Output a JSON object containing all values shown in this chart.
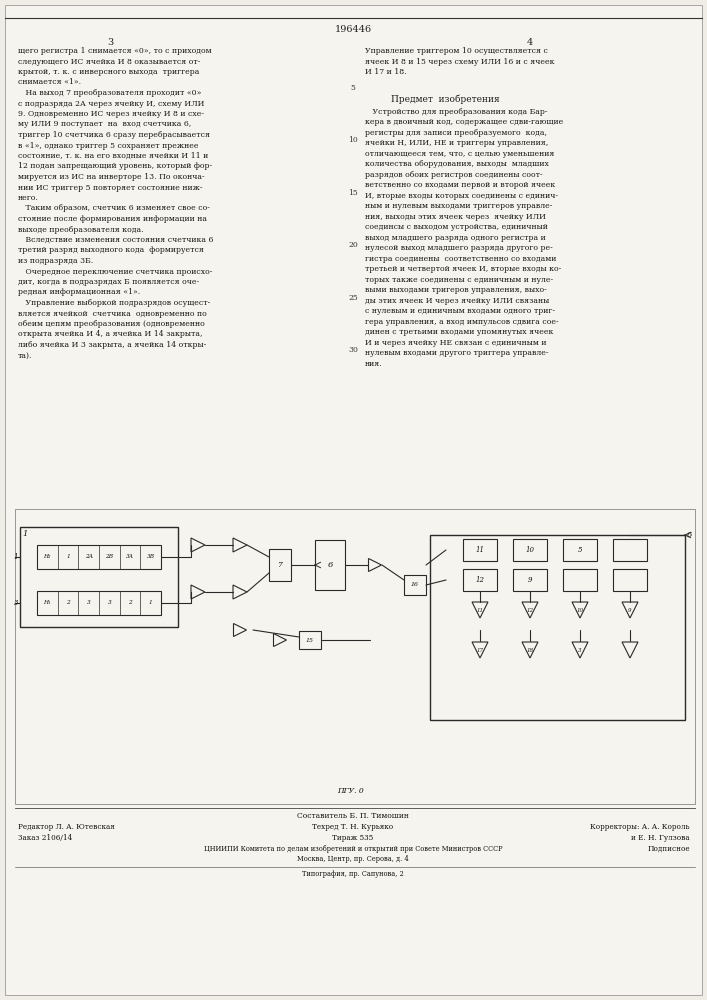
{
  "page_number_center": "196446",
  "col_left_num": "3",
  "col_right_num": "4",
  "background_color": "#f0ede6",
  "page_color": "#f5f4ee",
  "text_color": "#1a1a1a",
  "left_text": [
    "щего регистра 1 снимается «0», то с приходом",
    "следующего ИС ячейка И 8 оказывается от-",
    "крытой, т. к. с инверсного выхода  триггера",
    "снимается «1».",
    "   На выход 7 преобразователя проходит «0»",
    "с подразряда 2А через ячейку И, схему ИЛИ",
    "9. Одновременно ИС через ячейку И 8 и схе-",
    "му ИЛИ 9 поступает  на  вход счетчика 6,",
    "триггер 10 счетчика 6 сразу перебрасывается",
    "в «1», однако триггер 5 сохраняет прежнее",
    "состояние, т. к. на его входные ячейки И 11 и",
    "12 подан запрещающий уровень, который фор-",
    "мируется из ИС на инверторе 13. По оконча-",
    "нии ИС триггер 5 повторяет состояние ниж-",
    "него.",
    "   Таким образом, счетчик 6 изменяет свое со-",
    "стояние после формирования информации на",
    "выходе преобразователя кода.",
    "   Вследствие изменения состояния счетчика 6",
    "третий разряд выходного кода  формируется",
    "из подразряда 3Б.",
    "   Очередное переключение счетчика происхо-",
    "дит, когда в подразрядах Б появляется оче-",
    "редная информационная «1».",
    "   Управление выборкой подразрядов осущест-",
    "вляется ячейкой  счетчика  одновременно по",
    "обеим цепям преобразования (одновременно",
    "открыта ячейка И 4, а ячейка И 14 закрыта,",
    "либо ячейка И 3 закрыта, а ячейка 14 откры-",
    "та)."
  ],
  "right_text_top": [
    "Управление триггером 10 осуществляется с",
    "ячеек И 8 и 15 через схему ИЛИ 16 и с ячеек",
    "И 17 и 18."
  ],
  "predmet_title": "Предмет  изобретения",
  "right_text_body": [
    "   Устройство для преобразования кода Бар-",
    "кера в двоичный код, содержащее сдви-гающие",
    "регистры для записи преобразуемого  кода,",
    "ячейки Н, ИЛИ, НЕ и триггеры управления,",
    "отличающееся тем, что, с целью уменьшения",
    "количества оборудования, выходы  младших",
    "разрядов обоих регистров соединены соот-",
    "ветственно со входами первой и второй ячеек",
    "И, вторые входы которых соединены с единич-",
    "ным и нулевым выходами триггеров управле-",
    "ния, выходы этих ячеек через  ячейку ИЛИ",
    "соединсы с выходом устройства, единичный",
    "выход младшего разряда одного регистра и",
    "нулесой выход младшего разряда другого ре-",
    "гистра соединены  соответственно со входами",
    "третьей и четвертой ячеек И, вторые входы ко-",
    "торых также соединены с единичным и нуле-",
    "выми выходами тригеров управления, выхо-",
    "ды этих ячеек И через ячейку ИЛИ связаны",
    "с нулевым и единичным входами одного триг-",
    "гера управления, а вход импульсов сдвига сое-",
    "динен с третьими входами упомянутых ячеек",
    "И и через ячейку НЕ связан с единичным и",
    "нулевым входами другого триггера управле-",
    "ния."
  ],
  "line_numbers_left": [
    "5",
    "10",
    "15",
    "20",
    "25",
    "30"
  ],
  "footer_left1": "Редактор Л. А. Ютевская",
  "footer_left2": "Заказ 2106/14",
  "footer_center_top": "Составитель Б. П. Тимошин",
  "footer_center_mid": "Техред Т. Н. Курьяко",
  "footer_center_tirazh": "Тираж 535",
  "footer_right1": "Корректоры: А. А. Король",
  "footer_right2": "и Е. Н. Гулзова",
  "footer_right3": "Подписное",
  "footer_institute": "ЦНИИПИ Комитета по делам изобретений и открытий при Совете Министров СССР",
  "footer_address": "Москва, Центр, пр. Серова, д. 4",
  "footer_typography": "Типография, пр. Сапунова, 2",
  "diagram_caption": "ПГУ. 0"
}
